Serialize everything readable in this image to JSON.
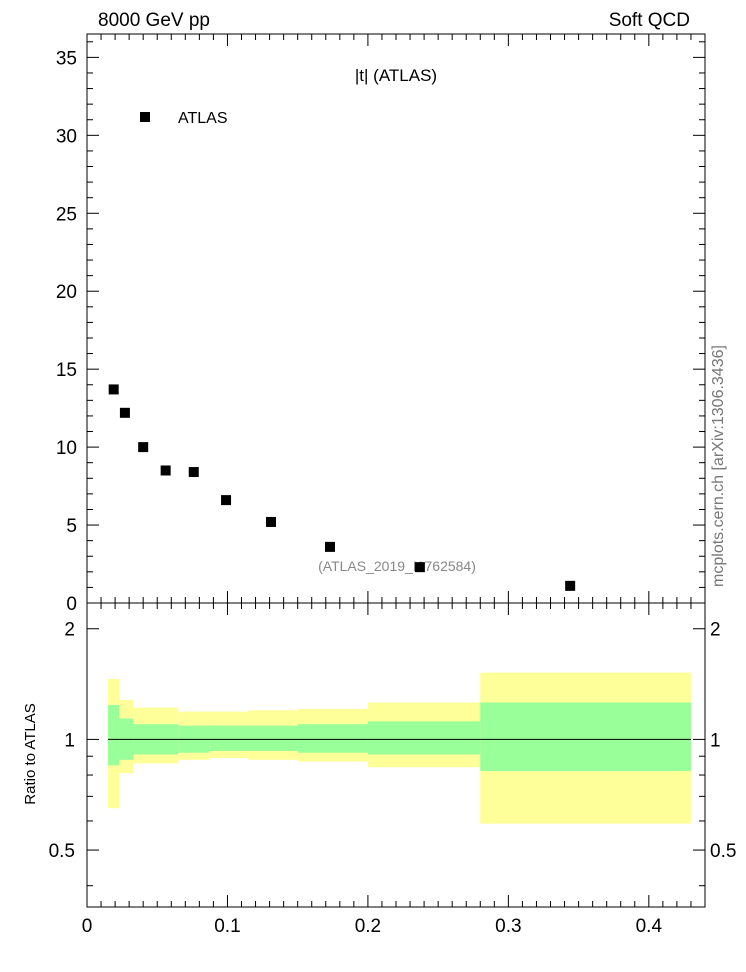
{
  "header": {
    "left": "8000 GeV pp",
    "right": "Soft QCD"
  },
  "side_label": "mcplots.cern.ch [arXiv:1306.3436]",
  "chart_data": [
    {
      "type": "scatter",
      "title": "|t| (ATLAS)",
      "analysis_label": "(ATLAS_2019_I1762584)",
      "legend": {
        "entries": [
          "ATLAS"
        ],
        "placement": "top-left"
      },
      "xlim": [
        0,
        0.44
      ],
      "ylim": [
        0,
        36.5
      ],
      "ytick_labels": [
        "0",
        "5",
        "10",
        "15",
        "20",
        "25",
        "30",
        "35"
      ],
      "yticks": [
        0,
        5,
        10,
        15,
        20,
        25,
        30,
        35
      ],
      "series": [
        {
          "name": "ATLAS",
          "color": "#000000",
          "x": [
            0.019,
            0.027,
            0.04,
            0.056,
            0.076,
            0.099,
            0.131,
            0.173,
            0.237,
            0.344
          ],
          "y": [
            13.7,
            12.2,
            10.0,
            8.5,
            8.4,
            6.6,
            5.2,
            3.6,
            2.3,
            1.1
          ]
        }
      ]
    },
    {
      "type": "area",
      "ylabel": "Ratio to ATLAS",
      "xlim": [
        0,
        0.44
      ],
      "ylim": [
        0.35,
        2.35
      ],
      "xtick_labels": [
        "0",
        "0.1",
        "0.2",
        "0.3",
        "0.4"
      ],
      "xticks": [
        0,
        0.1,
        0.2,
        0.3,
        0.4
      ],
      "ytick_labels": [
        "0.5",
        "1",
        "2"
      ],
      "yticks": [
        0.5,
        1,
        2
      ],
      "reference_line": 1,
      "bands": {
        "bin_edges": [
          0.015,
          0.023,
          0.033,
          0.047,
          0.065,
          0.087,
          0.115,
          0.15,
          0.2,
          0.28,
          0.43
        ],
        "yellow": {
          "color": "#ffff99",
          "lower": [
            0.65,
            0.81,
            0.86,
            0.86,
            0.88,
            0.89,
            0.88,
            0.87,
            0.84,
            0.59
          ],
          "upper": [
            1.46,
            1.28,
            1.22,
            1.22,
            1.19,
            1.19,
            1.2,
            1.21,
            1.26,
            1.52
          ]
        },
        "green": {
          "color": "#99ff99",
          "lower": [
            0.85,
            0.88,
            0.91,
            0.91,
            0.92,
            0.93,
            0.93,
            0.92,
            0.91,
            0.82
          ],
          "upper": [
            1.24,
            1.14,
            1.1,
            1.1,
            1.09,
            1.09,
            1.09,
            1.1,
            1.12,
            1.26
          ]
        }
      }
    }
  ]
}
